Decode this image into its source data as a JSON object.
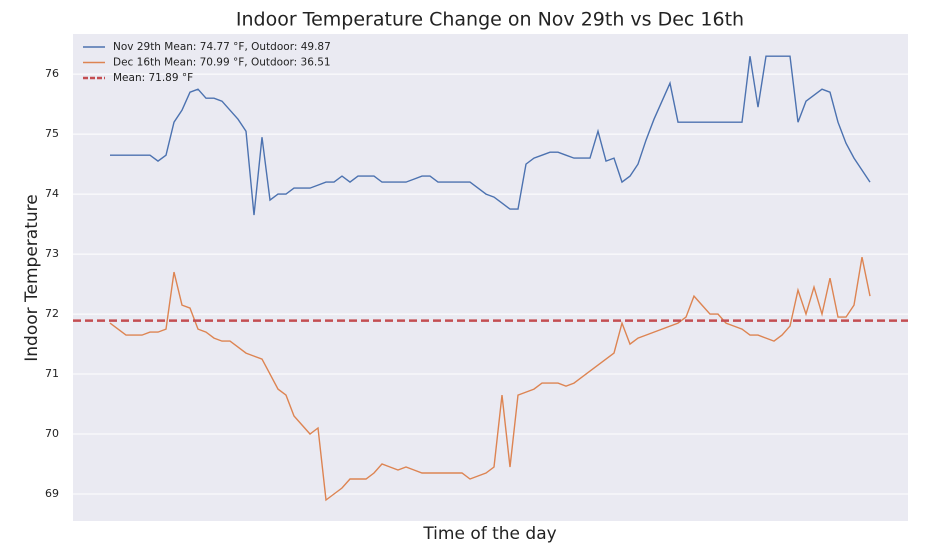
{
  "chart_data": {
    "type": "line",
    "title": "Indoor Temperature Change on Nov 29th vs Dec 16th",
    "x_label": "Time of the day",
    "y_label": "Indoor Temperature",
    "categories": [
      null,
      null,
      null,
      null,
      null,
      null,
      null,
      null,
      null,
      null,
      null,
      null,
      null,
      null,
      null,
      null,
      null,
      null,
      null,
      null,
      null,
      null,
      null,
      null,
      null,
      null,
      null,
      null,
      null,
      null,
      null,
      null,
      null,
      null,
      null,
      null,
      null,
      null,
      null,
      null,
      null,
      null,
      null,
      null,
      null,
      null,
      null,
      null,
      null,
      null,
      null,
      null,
      null,
      null,
      null,
      null,
      null,
      null,
      null,
      null,
      null,
      null,
      null,
      null,
      null,
      null,
      null,
      null,
      null,
      null,
      null,
      null,
      null,
      null,
      null,
      null,
      null,
      null,
      null,
      null,
      null,
      null,
      null,
      null,
      null,
      null,
      null,
      null,
      null,
      null,
      null,
      null,
      null,
      null,
      null,
      null
    ],
    "series": [
      {
        "name": "Nov 29th Mean: 74.77 °F, Outdoor: 49.87",
        "color": "#4c72b0",
        "values": [
          74.65,
          74.65,
          74.65,
          74.65,
          74.65,
          74.65,
          74.55,
          74.65,
          75.2,
          75.4,
          75.7,
          75.75,
          75.6,
          75.6,
          75.55,
          75.4,
          75.25,
          75.05,
          73.65,
          74.95,
          73.9,
          74.0,
          74.0,
          74.1,
          74.1,
          74.1,
          74.15,
          74.2,
          74.2,
          74.3,
          74.2,
          74.3,
          74.3,
          74.3,
          74.2,
          74.2,
          74.2,
          74.2,
          74.25,
          74.3,
          74.3,
          74.2,
          74.2,
          74.2,
          74.2,
          74.2,
          74.1,
          74.0,
          73.95,
          73.85,
          73.75,
          73.75,
          74.5,
          74.6,
          74.65,
          74.7,
          74.7,
          74.65,
          74.6,
          74.6,
          74.6,
          75.05,
          74.55,
          74.6,
          74.2,
          74.3,
          74.5,
          74.9,
          75.25,
          75.55,
          75.85,
          75.2,
          75.2,
          75.2,
          75.2,
          75.2,
          75.2,
          75.2,
          75.2,
          75.2,
          76.3,
          75.45,
          76.3,
          76.3,
          76.3,
          76.3,
          75.2,
          75.55,
          75.65,
          75.75,
          75.7,
          75.2,
          74.85,
          74.6,
          74.4,
          74.2
        ]
      },
      {
        "name": "Dec 16th Mean: 70.99 °F, Outdoor: 36.51",
        "color": "#dd8452",
        "values": [
          71.85,
          71.75,
          71.65,
          71.65,
          71.65,
          71.7,
          71.7,
          71.75,
          72.7,
          72.15,
          72.1,
          71.75,
          71.7,
          71.6,
          71.55,
          71.55,
          71.45,
          71.35,
          71.3,
          71.25,
          71.0,
          70.75,
          70.65,
          70.3,
          70.15,
          70.0,
          70.1,
          68.9,
          69.0,
          69.1,
          69.25,
          69.25,
          69.25,
          69.35,
          69.5,
          69.45,
          69.4,
          69.45,
          69.4,
          69.35,
          69.35,
          69.35,
          69.35,
          69.35,
          69.35,
          69.25,
          69.3,
          69.35,
          69.45,
          70.65,
          69.45,
          70.65,
          70.7,
          70.75,
          70.85,
          70.85,
          70.85,
          70.8,
          70.85,
          70.95,
          71.05,
          71.15,
          71.25,
          71.35,
          71.85,
          71.5,
          71.6,
          71.65,
          71.7,
          71.75,
          71.8,
          71.85,
          71.95,
          72.3,
          72.15,
          72.0,
          72.0,
          71.85,
          71.8,
          71.75,
          71.65,
          71.65,
          71.6,
          71.55,
          71.65,
          71.8,
          72.4,
          72.0,
          72.45,
          72.0,
          72.6,
          71.95,
          71.95,
          72.15,
          72.95,
          72.3
        ]
      }
    ],
    "hlines": [
      {
        "name": "Mean: 71.89 °F",
        "value": 71.89,
        "color": "#c44e52"
      }
    ],
    "ylim": [
      68.55,
      76.67
    ],
    "yticks": [
      69,
      70,
      71,
      72,
      73,
      74,
      75,
      76
    ],
    "grid": true,
    "legend": "upper left"
  }
}
